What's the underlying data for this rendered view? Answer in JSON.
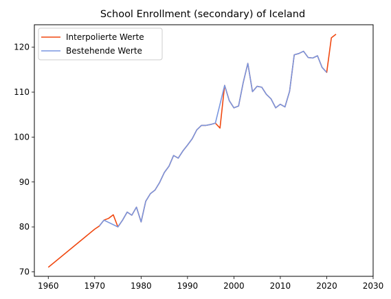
{
  "chart_data": {
    "type": "line",
    "title": "School Enrollment (secondary) of Iceland",
    "xlabel": "",
    "ylabel": "",
    "xlim": [
      1957,
      2030
    ],
    "ylim": [
      69,
      125
    ],
    "x_ticks": [
      1960,
      1970,
      1980,
      1990,
      2000,
      2010,
      2020,
      2030
    ],
    "y_ticks": [
      70,
      80,
      90,
      100,
      110,
      120
    ],
    "grid": false,
    "legend_position": "top-left",
    "series": [
      {
        "name": "Interpolierte Werte",
        "color": "#f0470f",
        "points": [
          [
            1960,
            71.0
          ],
          [
            1970,
            79.5
          ],
          [
            1971,
            80.2
          ],
          [
            1972,
            81.5
          ],
          [
            1973,
            81.9
          ],
          [
            1974,
            82.7
          ],
          [
            1975,
            80.0
          ],
          [
            1976,
            81.5
          ],
          [
            1977,
            83.3
          ],
          [
            1978,
            82.6
          ],
          [
            1979,
            84.4
          ],
          [
            1980,
            81.1
          ],
          [
            1981,
            85.7
          ],
          [
            1982,
            87.4
          ],
          [
            1983,
            88.2
          ],
          [
            1984,
            89.9
          ],
          [
            1985,
            92.1
          ],
          [
            1986,
            93.5
          ],
          [
            1987,
            95.9
          ],
          [
            1988,
            95.3
          ],
          [
            1989,
            96.9
          ],
          [
            1990,
            98.2
          ],
          [
            1991,
            99.6
          ],
          [
            1992,
            101.6
          ],
          [
            1993,
            102.6
          ],
          [
            1994,
            102.6
          ],
          [
            1995,
            102.8
          ],
          [
            1996,
            103.1
          ],
          [
            1997,
            102.0
          ],
          [
            1998,
            111.5
          ],
          [
            1999,
            108.1
          ],
          [
            2000,
            106.5
          ],
          [
            2001,
            106.9
          ],
          [
            2002,
            112.1
          ],
          [
            2003,
            116.4
          ],
          [
            2004,
            110.1
          ],
          [
            2005,
            111.3
          ],
          [
            2006,
            111.1
          ],
          [
            2007,
            109.5
          ],
          [
            2008,
            108.5
          ],
          [
            2009,
            106.5
          ],
          [
            2010,
            107.3
          ],
          [
            2011,
            106.7
          ],
          [
            2012,
            110.2
          ],
          [
            2013,
            118.3
          ],
          [
            2014,
            118.6
          ],
          [
            2015,
            119.1
          ],
          [
            2016,
            117.7
          ],
          [
            2017,
            117.6
          ],
          [
            2018,
            118.1
          ],
          [
            2019,
            115.5
          ],
          [
            2020,
            114.4
          ],
          [
            2021,
            122.1
          ],
          [
            2022,
            122.9
          ]
        ]
      },
      {
        "name": "Bestehende Werte",
        "color": "#7896e0",
        "points": [
          [
            1971,
            80.2
          ],
          [
            1972,
            81.5
          ],
          [
            1975,
            80.0
          ],
          [
            1976,
            81.5
          ],
          [
            1977,
            83.3
          ],
          [
            1978,
            82.6
          ],
          [
            1979,
            84.4
          ],
          [
            1980,
            81.1
          ],
          [
            1981,
            85.7
          ],
          [
            1982,
            87.4
          ],
          [
            1983,
            88.2
          ],
          [
            1984,
            89.9
          ],
          [
            1985,
            92.1
          ],
          [
            1986,
            93.5
          ],
          [
            1987,
            95.9
          ],
          [
            1988,
            95.3
          ],
          [
            1989,
            96.9
          ],
          [
            1990,
            98.2
          ],
          [
            1991,
            99.6
          ],
          [
            1992,
            101.6
          ],
          [
            1993,
            102.6
          ],
          [
            1994,
            102.6
          ],
          [
            1995,
            102.8
          ],
          [
            1996,
            103.1
          ],
          [
            1998,
            111.5
          ],
          [
            1999,
            108.1
          ],
          [
            2000,
            106.5
          ],
          [
            2001,
            106.9
          ],
          [
            2002,
            112.1
          ],
          [
            2003,
            116.4
          ],
          [
            2004,
            110.1
          ],
          [
            2005,
            111.3
          ],
          [
            2006,
            111.1
          ],
          [
            2007,
            109.5
          ],
          [
            2008,
            108.5
          ],
          [
            2009,
            106.5
          ],
          [
            2010,
            107.3
          ],
          [
            2011,
            106.7
          ],
          [
            2012,
            110.2
          ],
          [
            2013,
            118.3
          ],
          [
            2014,
            118.6
          ],
          [
            2015,
            119.1
          ],
          [
            2016,
            117.7
          ],
          [
            2017,
            117.6
          ],
          [
            2018,
            118.1
          ],
          [
            2019,
            115.5
          ],
          [
            2020,
            114.4
          ]
        ]
      }
    ]
  }
}
